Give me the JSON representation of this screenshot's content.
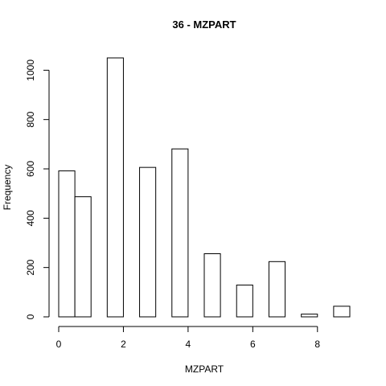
{
  "chart_data": {
    "type": "bar",
    "title": "36 - MZPART",
    "xlabel": "MZPART",
    "ylabel": "Frequency",
    "bins": [
      {
        "x0": 0.0,
        "x1": 0.5,
        "count": 592
      },
      {
        "x0": 0.5,
        "x1": 1.0,
        "count": 487
      },
      {
        "x0": 1.0,
        "x1": 1.5,
        "count": 0
      },
      {
        "x0": 1.5,
        "x1": 2.0,
        "count": 1050
      },
      {
        "x0": 2.0,
        "x1": 2.5,
        "count": 0
      },
      {
        "x0": 2.5,
        "x1": 3.0,
        "count": 606
      },
      {
        "x0": 3.0,
        "x1": 3.5,
        "count": 0
      },
      {
        "x0": 3.5,
        "x1": 4.0,
        "count": 681
      },
      {
        "x0": 4.0,
        "x1": 4.5,
        "count": 0
      },
      {
        "x0": 4.5,
        "x1": 5.0,
        "count": 256
      },
      {
        "x0": 5.0,
        "x1": 5.5,
        "count": 0
      },
      {
        "x0": 5.5,
        "x1": 6.0,
        "count": 129
      },
      {
        "x0": 6.0,
        "x1": 6.5,
        "count": 0
      },
      {
        "x0": 6.5,
        "x1": 7.0,
        "count": 224
      },
      {
        "x0": 7.0,
        "x1": 7.5,
        "count": 0
      },
      {
        "x0": 7.5,
        "x1": 8.0,
        "count": 11
      },
      {
        "x0": 8.0,
        "x1": 8.5,
        "count": 0
      },
      {
        "x0": 8.5,
        "x1": 9.0,
        "count": 43
      }
    ],
    "xlim": [
      0,
      9
    ],
    "ylim": [
      0,
      1050
    ],
    "x_ticks": [
      "0",
      "2",
      "4",
      "6",
      "8"
    ],
    "y_ticks": [
      "0",
      "200",
      "400",
      "600",
      "800",
      "1000"
    ],
    "grid": false,
    "legend": "none"
  }
}
